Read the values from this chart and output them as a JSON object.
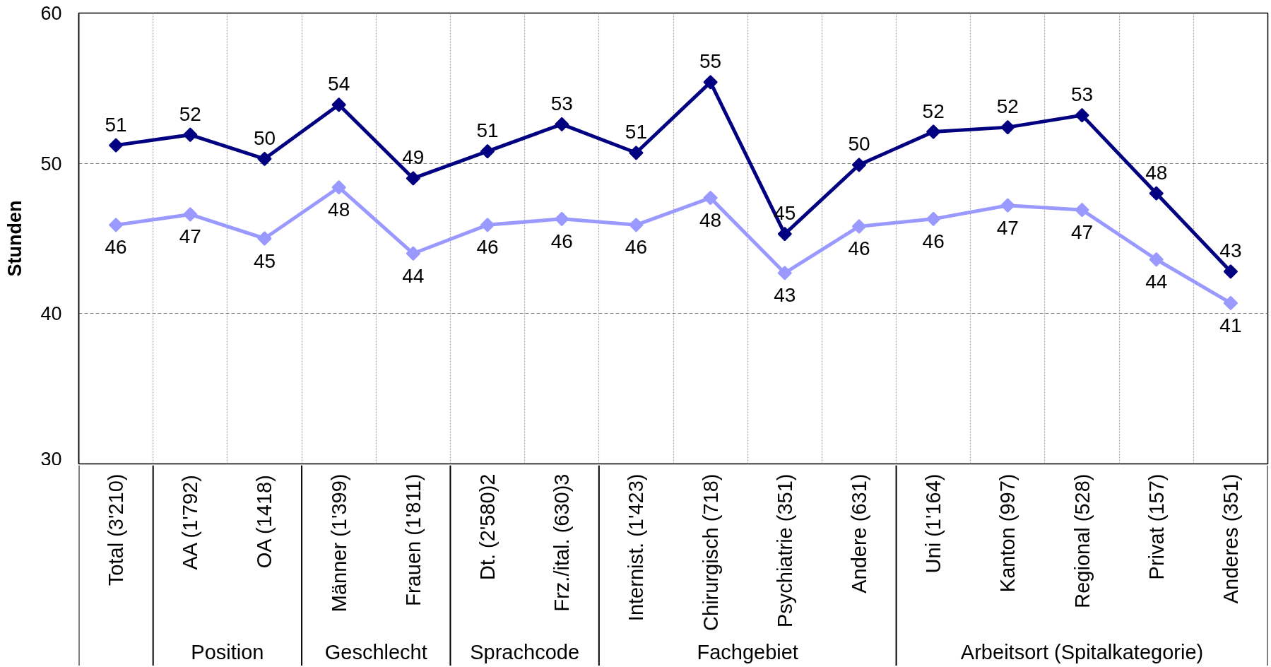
{
  "chart_data": {
    "type": "line",
    "ylabel": "Stunden",
    "categories": [
      "Total (3'210)",
      "AA (1'792)",
      "OA (1418)",
      "Männer (1'399)",
      "Frauen (1'811)",
      "Dt. (2'580)2",
      "Frz./ital. (630)3",
      "Internist. (1'423)",
      "Chirurgisch (718)",
      "Psychiatrie (351)",
      "Andere (631)",
      "Uni (1'164)",
      "Kanton (997)",
      "Regional (528)",
      "Privat (157)",
      "Anderes (351)"
    ],
    "ylim": [
      30,
      60
    ],
    "yticks": [
      30,
      40,
      50,
      60
    ],
    "grid": true,
    "marker": "diamond",
    "line_style": "solid",
    "series": [
      {
        "color": "#000080",
        "values": [
          51.2,
          51.9,
          50.3,
          53.9,
          49.0,
          50.8,
          52.6,
          50.7,
          55.4,
          45.3,
          49.9,
          52.1,
          52.4,
          53.2,
          48.0,
          42.8
        ],
        "value_labels": [
          "51",
          "52",
          "50",
          "54",
          "49",
          "51",
          "53",
          "51",
          "55",
          "45",
          "50",
          "52",
          "52",
          "53",
          "48",
          "43"
        ]
      },
      {
        "color": "#9999ff",
        "values": [
          45.9,
          46.6,
          45.0,
          48.4,
          44.0,
          45.9,
          46.3,
          45.9,
          47.7,
          42.7,
          45.8,
          46.3,
          47.2,
          46.9,
          43.6,
          40.7
        ],
        "value_labels": [
          "46",
          "47",
          "45",
          "48",
          "44",
          "46",
          "46",
          "46",
          "48",
          "43",
          "46",
          "46",
          "47",
          "47",
          "44",
          "41"
        ]
      }
    ],
    "annotations": [
      "Position",
      "Geschlecht",
      "Sprachcode",
      "Fachgebiet",
      "Arbeitsort (Spitalkategorie)"
    ]
  }
}
